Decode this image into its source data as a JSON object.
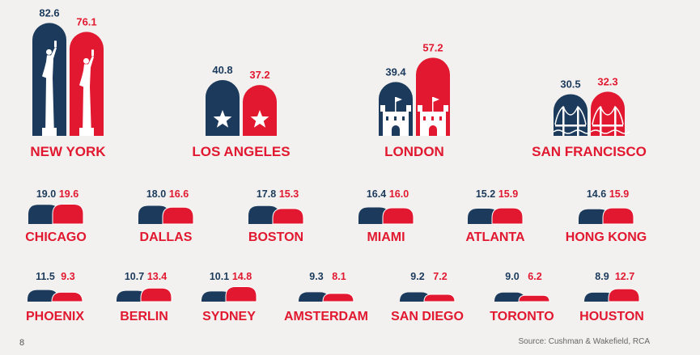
{
  "colors": {
    "navy": "#1b3a5c",
    "red": "#e1182f",
    "background": "#f2f1ef",
    "white": "#ffffff"
  },
  "page_number": "8",
  "source": "Source: Cushman & Wakefield, RCA",
  "chart_data": {
    "type": "bar",
    "title": "",
    "xlabel": "",
    "ylabel": "",
    "series": [
      {
        "name": "",
        "color": "#1b3a5c"
      },
      {
        "name": "",
        "color": "#e1182f"
      }
    ],
    "featured": [
      {
        "city": "NEW YORK",
        "values": [
          82.6,
          76.1
        ],
        "icon": "statue-of-liberty-icon"
      },
      {
        "city": "LOS ANGELES",
        "values": [
          40.8,
          37.2
        ],
        "icon": "star-icon"
      },
      {
        "city": "LONDON",
        "values": [
          39.4,
          57.2
        ],
        "icon": "castle-icon"
      },
      {
        "city": "SAN FRANCISCO",
        "values": [
          30.5,
          32.3
        ],
        "icon": "bridge-icon"
      }
    ],
    "row2": [
      {
        "city": "CHICAGO",
        "values": [
          19.0,
          19.6
        ]
      },
      {
        "city": "DALLAS",
        "values": [
          18.0,
          16.6
        ]
      },
      {
        "city": "BOSTON",
        "values": [
          17.8,
          15.3
        ]
      },
      {
        "city": "MIAMI",
        "values": [
          16.4,
          16.0
        ]
      },
      {
        "city": "ATLANTA",
        "values": [
          15.2,
          15.9
        ]
      },
      {
        "city": "HONG KONG",
        "values": [
          14.6,
          15.9
        ]
      }
    ],
    "row3": [
      {
        "city": "PHOENIX",
        "values": [
          11.5,
          9.3
        ]
      },
      {
        "city": "BERLIN",
        "values": [
          10.7,
          13.4
        ]
      },
      {
        "city": "SYDNEY",
        "values": [
          10.1,
          14.8
        ]
      },
      {
        "city": "AMSTERDAM",
        "values": [
          9.3,
          8.1
        ]
      },
      {
        "city": "SAN DIEGO",
        "values": [
          9.2,
          7.2
        ]
      },
      {
        "city": "TORONTO",
        "values": [
          9.0,
          6.2
        ]
      },
      {
        "city": "HOUSTON",
        "values": [
          8.9,
          12.7
        ]
      }
    ]
  }
}
